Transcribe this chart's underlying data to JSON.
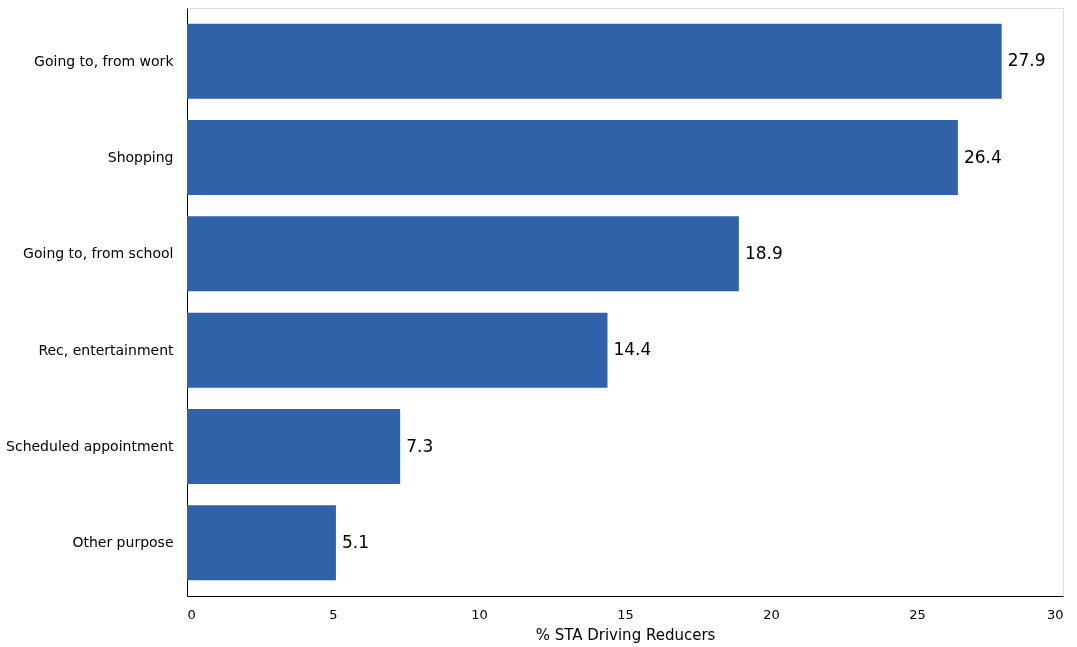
{
  "chart_data": {
    "type": "bar",
    "orientation": "horizontal",
    "xlabel": "% STA Driving Reducers",
    "categories": [
      "Going to, from work",
      "Shopping",
      "Going to, from school",
      "Rec, entertainment",
      "Scheduled appointment",
      "Other purpose"
    ],
    "values": [
      27.9,
      26.4,
      18.9,
      14.4,
      7.3,
      5.1
    ],
    "color": "#2f62a6",
    "data_labels": true,
    "grid": false,
    "xlim": [
      0,
      30
    ],
    "xticks": [
      0,
      5,
      10,
      15,
      20,
      25,
      30
    ]
  }
}
